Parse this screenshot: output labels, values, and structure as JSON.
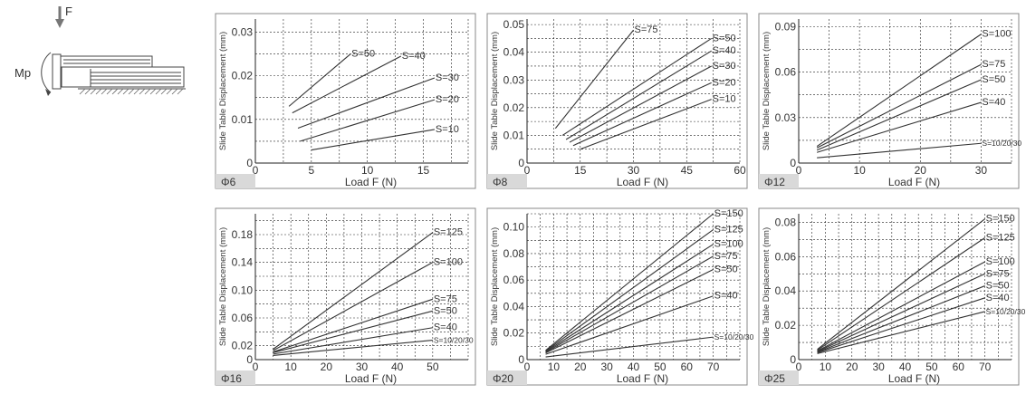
{
  "diagram": {
    "force_label": "F",
    "moment_label": "Mp"
  },
  "charts": [
    {
      "type": "line",
      "panel_label": "Φ6",
      "xlabel": "Load F (N)",
      "ylabel": "Slide Table Displacement (mm)",
      "xlim": [
        0,
        19
      ],
      "ylim": [
        0,
        0.033
      ],
      "xticks": [
        0,
        5,
        10,
        15
      ],
      "yticks": [
        0.01,
        0.02,
        0.03
      ],
      "xgrid": [
        0,
        2.5,
        5,
        7.5,
        10,
        12.5,
        15,
        17.5,
        19
      ],
      "ygrid": [
        0,
        0.005,
        0.01,
        0.015,
        0.02,
        0.025,
        0.03
      ],
      "grid": true,
      "series": [
        {
          "name": "S=50",
          "x": [
            3,
            8.5
          ],
          "y": [
            0.013,
            0.025
          ]
        },
        {
          "name": "S=40",
          "x": [
            3.3,
            13
          ],
          "y": [
            0.0115,
            0.0245
          ]
        },
        {
          "name": "S=30",
          "x": [
            3.8,
            16
          ],
          "y": [
            0.008,
            0.0195
          ]
        },
        {
          "name": "S=20",
          "x": [
            4,
            16
          ],
          "y": [
            0.005,
            0.0145
          ]
        },
        {
          "name": "S=10",
          "x": [
            5,
            16
          ],
          "y": [
            0.003,
            0.0077
          ]
        }
      ]
    },
    {
      "type": "line",
      "panel_label": "Φ8",
      "xlabel": "Load F (N)",
      "ylabel": "Slide Table Displacement (mm)",
      "xlim": [
        0,
        60
      ],
      "ylim": [
        0,
        0.052
      ],
      "xticks": [
        0,
        15,
        30,
        45,
        60
      ],
      "yticks": [
        0.01,
        0.02,
        0.03,
        0.04,
        0.05
      ],
      "xgrid": [
        0,
        7.5,
        15,
        22.5,
        30,
        37.5,
        45,
        52.5,
        60
      ],
      "ygrid": [
        0,
        0.005,
        0.01,
        0.015,
        0.02,
        0.025,
        0.03,
        0.035,
        0.04,
        0.045,
        0.05
      ],
      "grid": true,
      "series": [
        {
          "name": "S=75",
          "x": [
            8,
            30
          ],
          "y": [
            0.0125,
            0.048
          ]
        },
        {
          "name": "S=50",
          "x": [
            10,
            52
          ],
          "y": [
            0.01,
            0.045
          ]
        },
        {
          "name": "S=40",
          "x": [
            11,
            52
          ],
          "y": [
            0.0085,
            0.0405
          ]
        },
        {
          "name": "S=30",
          "x": [
            12,
            52
          ],
          "y": [
            0.0075,
            0.035
          ]
        },
        {
          "name": "S=20",
          "x": [
            13,
            52
          ],
          "y": [
            0.0063,
            0.029
          ]
        },
        {
          "name": "S=10",
          "x": [
            15,
            52
          ],
          "y": [
            0.005,
            0.023
          ]
        }
      ]
    },
    {
      "type": "line",
      "panel_label": "Φ12",
      "xlabel": "Load F (N)",
      "ylabel": "Slide Table Displacement (mm)",
      "xlim": [
        0,
        35
      ],
      "ylim": [
        0,
        0.095
      ],
      "xticks": [
        0,
        10,
        20,
        30
      ],
      "yticks": [
        0.03,
        0.06,
        0.09
      ],
      "xgrid": [
        0,
        5,
        10,
        15,
        20,
        25,
        30,
        35
      ],
      "ygrid": [
        0,
        0.015,
        0.03,
        0.045,
        0.06,
        0.075,
        0.09
      ],
      "grid": true,
      "series": [
        {
          "name": "S=100",
          "x": [
            3,
            30
          ],
          "y": [
            0.011,
            0.085
          ]
        },
        {
          "name": "S=75",
          "x": [
            3,
            30
          ],
          "y": [
            0.01,
            0.065
          ]
        },
        {
          "name": "S=50",
          "x": [
            3,
            30
          ],
          "y": [
            0.0085,
            0.055
          ]
        },
        {
          "name": "S=40",
          "x": [
            3,
            30
          ],
          "y": [
            0.007,
            0.04
          ]
        },
        {
          "name": "S=10/20/30",
          "x": [
            3,
            30
          ],
          "y": [
            0.0035,
            0.013
          ]
        }
      ]
    },
    {
      "type": "line",
      "panel_label": "Φ16",
      "xlabel": "Load F (N)",
      "ylabel": "Slide Table Displacement (mm)",
      "xlim": [
        0,
        60
      ],
      "ylim": [
        0,
        0.21
      ],
      "xticks": [
        0,
        10,
        20,
        30,
        40,
        50
      ],
      "yticks": [
        0.02,
        0.06,
        0.1,
        0.14,
        0.18
      ],
      "ytick_labels": [
        "0.02",
        "0.06",
        "0.10",
        "0.14",
        "0.18"
      ],
      "xgrid": [
        0,
        5,
        10,
        15,
        20,
        25,
        30,
        35,
        40,
        45,
        50,
        55,
        60
      ],
      "ygrid": [
        0,
        0.02,
        0.04,
        0.06,
        0.08,
        0.1,
        0.12,
        0.14,
        0.16,
        0.18,
        0.2
      ],
      "grid": true,
      "series": [
        {
          "name": "S=125",
          "x": [
            5,
            50
          ],
          "y": [
            0.015,
            0.183
          ]
        },
        {
          "name": "S=100",
          "x": [
            5,
            50
          ],
          "y": [
            0.013,
            0.14
          ]
        },
        {
          "name": "S=75",
          "x": [
            5,
            50
          ],
          "y": [
            0.011,
            0.087
          ]
        },
        {
          "name": "S=50",
          "x": [
            5,
            50
          ],
          "y": [
            0.01,
            0.07
          ]
        },
        {
          "name": "S=40",
          "x": [
            5,
            50
          ],
          "y": [
            0.008,
            0.046
          ]
        },
        {
          "name": "S=10/20/30",
          "x": [
            5,
            50
          ],
          "y": [
            0.006,
            0.028
          ]
        }
      ]
    },
    {
      "type": "line",
      "panel_label": "Φ20",
      "xlabel": "Load F (N)",
      "ylabel": "Slide Table Displacement (mm)",
      "xlim": [
        0,
        80
      ],
      "ylim": [
        0,
        0.11
      ],
      "xticks": [
        0,
        10,
        20,
        30,
        40,
        50,
        60,
        70
      ],
      "yticks": [
        0.02,
        0.04,
        0.06,
        0.08,
        0.1
      ],
      "ytick_labels": [
        "0.02",
        "0.04",
        "0.06",
        "0.08",
        "0.10"
      ],
      "xgrid": [
        0,
        5,
        10,
        15,
        20,
        25,
        30,
        35,
        40,
        45,
        50,
        55,
        60,
        65,
        70,
        75,
        80
      ],
      "ygrid": [
        0,
        0.01,
        0.02,
        0.03,
        0.04,
        0.05,
        0.06,
        0.07,
        0.08,
        0.09,
        0.1,
        0.11
      ],
      "grid": true,
      "series": [
        {
          "name": "S=150",
          "x": [
            7,
            70
          ],
          "y": [
            0.007,
            0.11
          ]
        },
        {
          "name": "S=125",
          "x": [
            7,
            70
          ],
          "y": [
            0.0065,
            0.098
          ]
        },
        {
          "name": "S=100",
          "x": [
            7,
            70
          ],
          "y": [
            0.006,
            0.087
          ]
        },
        {
          "name": "S=75",
          "x": [
            7,
            70
          ],
          "y": [
            0.0055,
            0.078
          ]
        },
        {
          "name": "S=50",
          "x": [
            7,
            70
          ],
          "y": [
            0.005,
            0.068
          ]
        },
        {
          "name": "S=40",
          "x": [
            7,
            70
          ],
          "y": [
            0.004,
            0.048
          ]
        },
        {
          "name": "S=10/20/30",
          "x": [
            7,
            70
          ],
          "y": [
            0.002,
            0.017
          ]
        }
      ]
    },
    {
      "type": "line",
      "panel_label": "Φ25",
      "xlabel": "Load F (N)",
      "ylabel": "Slide Table Displacement (mm)",
      "xlim": [
        0,
        80
      ],
      "ylim": [
        0,
        0.085
      ],
      "xticks": [
        0,
        10,
        20,
        30,
        40,
        50,
        60,
        70
      ],
      "yticks": [
        0.02,
        0.04,
        0.06,
        0.08
      ],
      "xgrid": [
        0,
        5,
        10,
        15,
        20,
        25,
        30,
        35,
        40,
        45,
        50,
        55,
        60,
        65,
        70,
        75,
        80
      ],
      "ygrid": [
        0,
        0.01,
        0.02,
        0.03,
        0.04,
        0.05,
        0.06,
        0.07,
        0.08
      ],
      "grid": true,
      "series": [
        {
          "name": "S=150",
          "x": [
            7,
            70
          ],
          "y": [
            0.006,
            0.082
          ]
        },
        {
          "name": "S=125",
          "x": [
            7,
            70
          ],
          "y": [
            0.0055,
            0.071
          ]
        },
        {
          "name": "S=100",
          "x": [
            7,
            70
          ],
          "y": [
            0.005,
            0.057
          ]
        },
        {
          "name": "S=75",
          "x": [
            7,
            70
          ],
          "y": [
            0.0047,
            0.05
          ]
        },
        {
          "name": "S=50",
          "x": [
            7,
            70
          ],
          "y": [
            0.0043,
            0.043
          ]
        },
        {
          "name": "S=40",
          "x": [
            7,
            70
          ],
          "y": [
            0.004,
            0.036
          ]
        },
        {
          "name": "S=10/20/30",
          "x": [
            7,
            70
          ],
          "y": [
            0.0035,
            0.028
          ]
        }
      ]
    }
  ],
  "chart_data": [
    {
      "type": "line",
      "panel": "Φ6",
      "xlabel": "Load F (N)",
      "ylabel": "Slide Table Displacement (mm)",
      "xlim": [
        0,
        19
      ],
      "ylim": [
        0,
        0.033
      ],
      "series": [
        {
          "name": "S=50",
          "x": [
            3,
            8.5
          ],
          "y": [
            0.013,
            0.025
          ]
        },
        {
          "name": "S=40",
          "x": [
            3.3,
            13
          ],
          "y": [
            0.0115,
            0.0245
          ]
        },
        {
          "name": "S=30",
          "x": [
            3.8,
            16
          ],
          "y": [
            0.008,
            0.0195
          ]
        },
        {
          "name": "S=20",
          "x": [
            4,
            16
          ],
          "y": [
            0.005,
            0.0145
          ]
        },
        {
          "name": "S=10",
          "x": [
            5,
            16
          ],
          "y": [
            0.003,
            0.0077
          ]
        }
      ]
    },
    {
      "type": "line",
      "panel": "Φ8",
      "xlabel": "Load F (N)",
      "ylabel": "Slide Table Displacement (mm)",
      "xlim": [
        0,
        60
      ],
      "ylim": [
        0,
        0.052
      ],
      "series": [
        {
          "name": "S=75",
          "x": [
            8,
            30
          ],
          "y": [
            0.0125,
            0.048
          ]
        },
        {
          "name": "S=50",
          "x": [
            10,
            52
          ],
          "y": [
            0.01,
            0.045
          ]
        },
        {
          "name": "S=40",
          "x": [
            11,
            52
          ],
          "y": [
            0.0085,
            0.0405
          ]
        },
        {
          "name": "S=30",
          "x": [
            12,
            52
          ],
          "y": [
            0.0075,
            0.035
          ]
        },
        {
          "name": "S=20",
          "x": [
            13,
            52
          ],
          "y": [
            0.0063,
            0.029
          ]
        },
        {
          "name": "S=10",
          "x": [
            15,
            52
          ],
          "y": [
            0.005,
            0.023
          ]
        }
      ]
    },
    {
      "type": "line",
      "panel": "Φ12",
      "xlabel": "Load F (N)",
      "ylabel": "Slide Table Displacement (mm)",
      "xlim": [
        0,
        35
      ],
      "ylim": [
        0,
        0.095
      ],
      "series": [
        {
          "name": "S=100",
          "x": [
            3,
            30
          ],
          "y": [
            0.011,
            0.085
          ]
        },
        {
          "name": "S=75",
          "x": [
            3,
            30
          ],
          "y": [
            0.01,
            0.065
          ]
        },
        {
          "name": "S=50",
          "x": [
            3,
            30
          ],
          "y": [
            0.0085,
            0.055
          ]
        },
        {
          "name": "S=40",
          "x": [
            3,
            30
          ],
          "y": [
            0.007,
            0.04
          ]
        },
        {
          "name": "S=10/20/30",
          "x": [
            3,
            30
          ],
          "y": [
            0.0035,
            0.013
          ]
        }
      ]
    },
    {
      "type": "line",
      "panel": "Φ16",
      "xlabel": "Load F (N)",
      "ylabel": "Slide Table Displacement (mm)",
      "xlim": [
        0,
        60
      ],
      "ylim": [
        0,
        0.21
      ],
      "series": [
        {
          "name": "S=125",
          "x": [
            5,
            50
          ],
          "y": [
            0.015,
            0.183
          ]
        },
        {
          "name": "S=100",
          "x": [
            5,
            50
          ],
          "y": [
            0.013,
            0.14
          ]
        },
        {
          "name": "S=75",
          "x": [
            5,
            50
          ],
          "y": [
            0.011,
            0.087
          ]
        },
        {
          "name": "S=50",
          "x": [
            5,
            50
          ],
          "y": [
            0.01,
            0.07
          ]
        },
        {
          "name": "S=40",
          "x": [
            5,
            50
          ],
          "y": [
            0.008,
            0.046
          ]
        },
        {
          "name": "S=10/20/30",
          "x": [
            5,
            50
          ],
          "y": [
            0.006,
            0.028
          ]
        }
      ]
    },
    {
      "type": "line",
      "panel": "Φ20",
      "xlabel": "Load F (N)",
      "ylabel": "Slide Table Displacement (mm)",
      "xlim": [
        0,
        80
      ],
      "ylim": [
        0,
        0.11
      ],
      "series": [
        {
          "name": "S=150",
          "x": [
            7,
            70
          ],
          "y": [
            0.007,
            0.11
          ]
        },
        {
          "name": "S=125",
          "x": [
            7,
            70
          ],
          "y": [
            0.0065,
            0.098
          ]
        },
        {
          "name": "S=100",
          "x": [
            7,
            70
          ],
          "y": [
            0.006,
            0.087
          ]
        },
        {
          "name": "S=75",
          "x": [
            7,
            70
          ],
          "y": [
            0.0055,
            0.078
          ]
        },
        {
          "name": "S=50",
          "x": [
            7,
            70
          ],
          "y": [
            0.005,
            0.068
          ]
        },
        {
          "name": "S=40",
          "x": [
            7,
            70
          ],
          "y": [
            0.004,
            0.048
          ]
        },
        {
          "name": "S=10/20/30",
          "x": [
            7,
            70
          ],
          "y": [
            0.002,
            0.017
          ]
        }
      ]
    },
    {
      "type": "line",
      "panel": "Φ25",
      "xlabel": "Load F (N)",
      "ylabel": "Slide Table Displacement (mm)",
      "xlim": [
        0,
        80
      ],
      "ylim": [
        0,
        0.085
      ],
      "series": [
        {
          "name": "S=150",
          "x": [
            7,
            70
          ],
          "y": [
            0.006,
            0.082
          ]
        },
        {
          "name": "S=125",
          "x": [
            7,
            70
          ],
          "y": [
            0.0055,
            0.071
          ]
        },
        {
          "name": "S=100",
          "x": [
            7,
            70
          ],
          "y": [
            0.005,
            0.057
          ]
        },
        {
          "name": "S=75",
          "x": [
            7,
            70
          ],
          "y": [
            0.0047,
            0.05
          ]
        },
        {
          "name": "S=50",
          "x": [
            7,
            70
          ],
          "y": [
            0.0043,
            0.043
          ]
        },
        {
          "name": "S=40",
          "x": [
            7,
            70
          ],
          "y": [
            0.004,
            0.036
          ]
        },
        {
          "name": "S=10/20/30",
          "x": [
            7,
            70
          ],
          "y": [
            0.0035,
            0.028
          ]
        }
      ]
    }
  ]
}
